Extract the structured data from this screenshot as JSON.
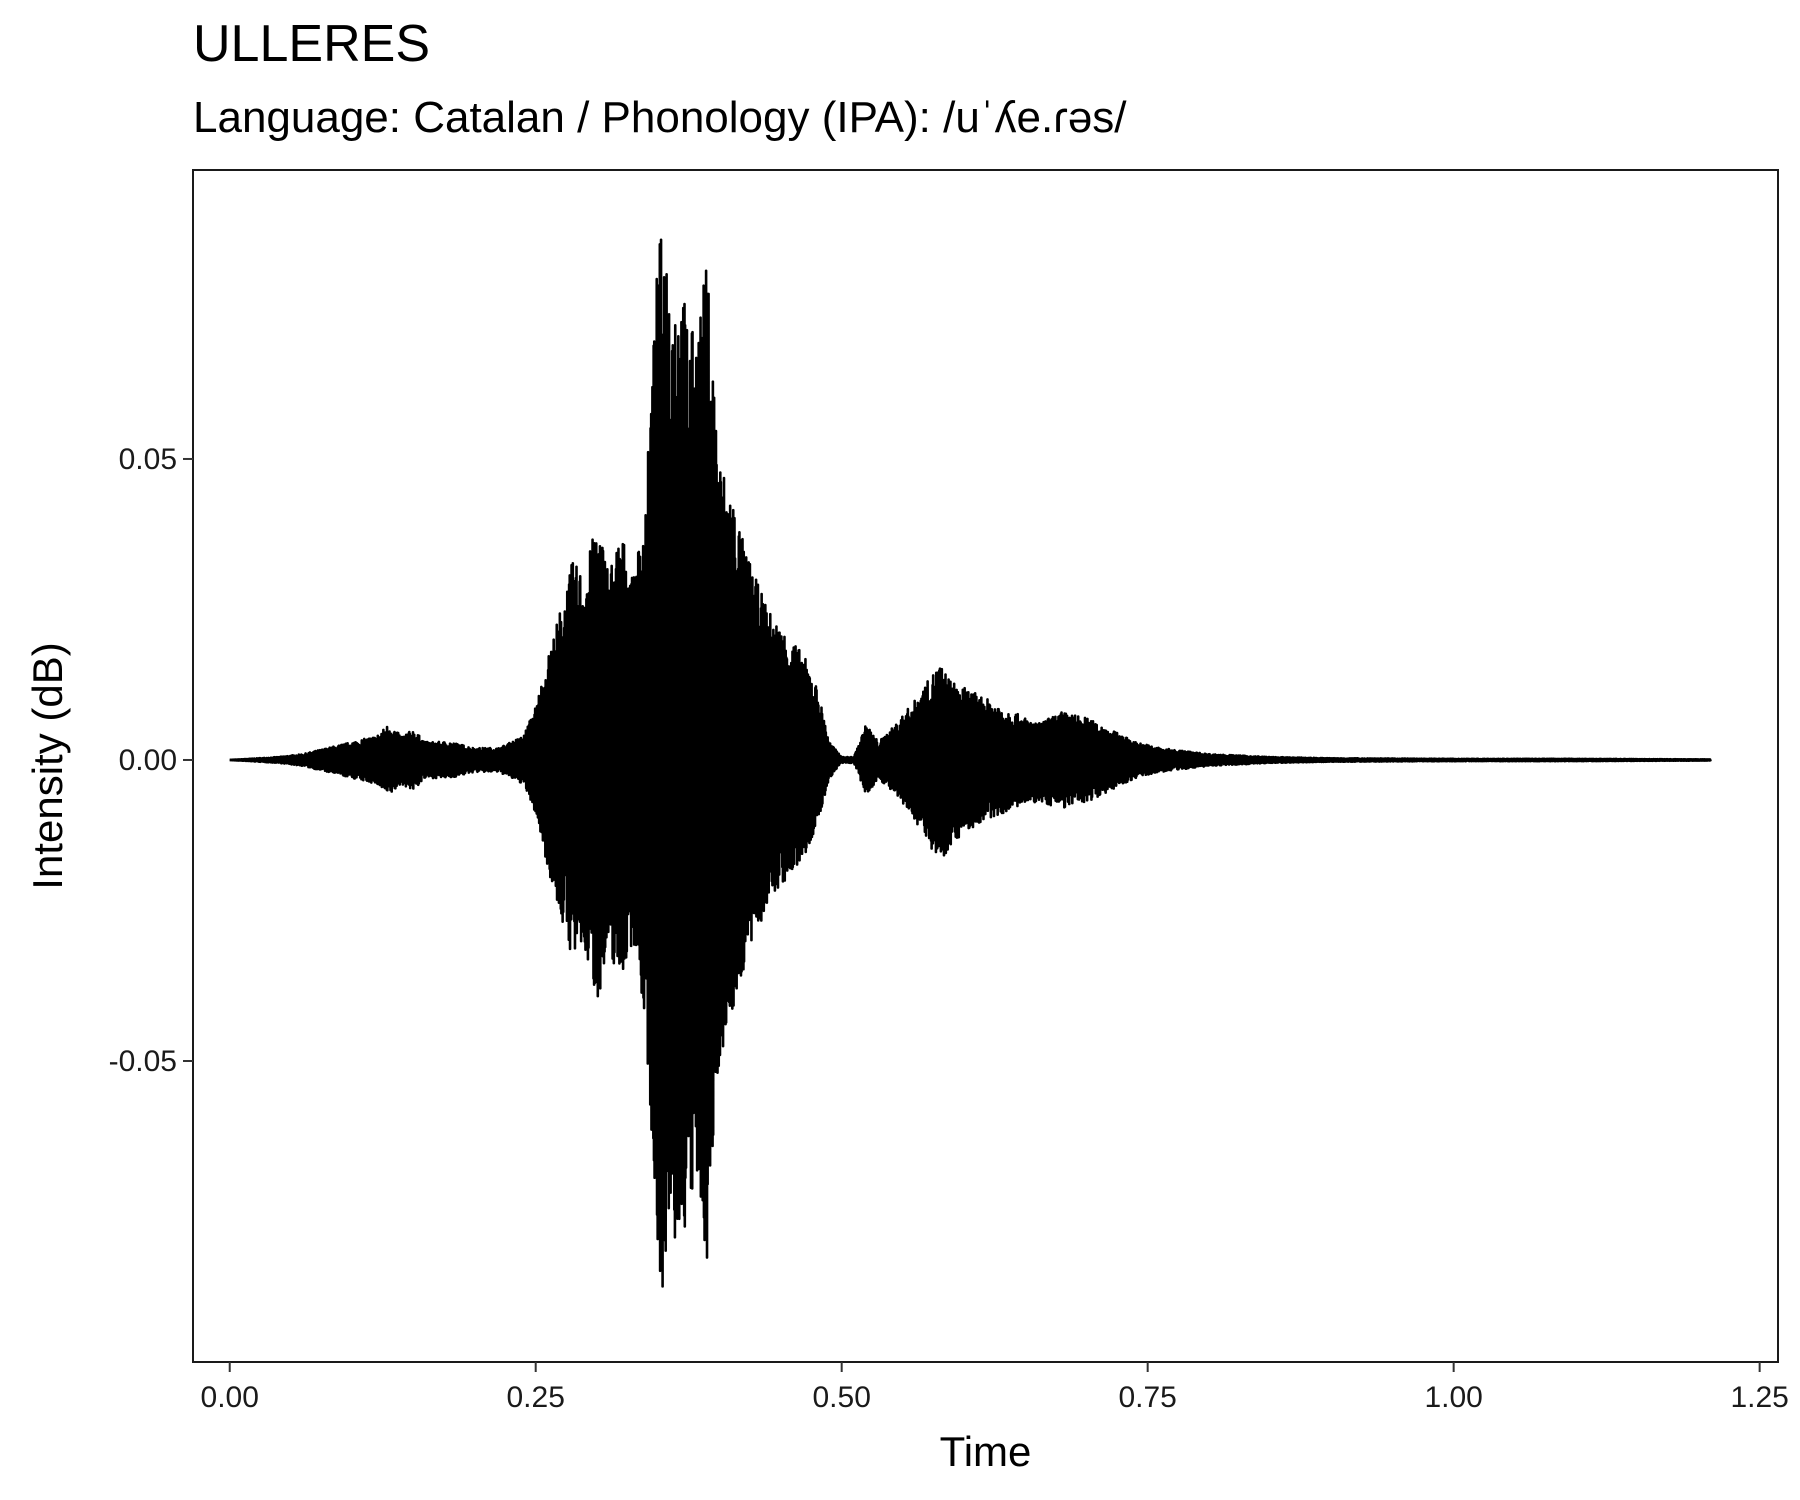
{
  "chart_data": {
    "type": "line",
    "title": "ULLERES",
    "subtitle": "Language: Catalan / Phonology (IPA): /uˈʎe.ɾəs/",
    "xlabel": "Time",
    "ylabel": "Intensity (dB)",
    "xlim": [
      -0.03,
      1.265
    ],
    "ylim": [
      -0.1,
      0.098
    ],
    "x_ticks": [
      0.0,
      0.25,
      0.5,
      0.75,
      1.0,
      1.25
    ],
    "x_tick_labels": [
      "0.00",
      "0.25",
      "0.50",
      "0.75",
      "1.00",
      "1.25"
    ],
    "y_ticks": [
      -0.05,
      0.0,
      0.05
    ],
    "y_tick_labels": [
      "-0.05",
      "0.00",
      "0.05"
    ],
    "grid": false,
    "legend": "none",
    "series_color": "#000000",
    "duration": 1.21,
    "envelope": {
      "x": [
        0.0,
        0.04,
        0.06,
        0.08,
        0.1,
        0.12,
        0.13,
        0.14,
        0.15,
        0.16,
        0.18,
        0.2,
        0.22,
        0.24,
        0.25,
        0.26,
        0.27,
        0.28,
        0.29,
        0.3,
        0.31,
        0.32,
        0.33,
        0.34,
        0.35,
        0.355,
        0.36,
        0.37,
        0.38,
        0.39,
        0.4,
        0.41,
        0.42,
        0.43,
        0.44,
        0.45,
        0.46,
        0.47,
        0.48,
        0.49,
        0.5,
        0.51,
        0.52,
        0.53,
        0.54,
        0.56,
        0.58,
        0.59,
        0.6,
        0.62,
        0.64,
        0.66,
        0.68,
        0.7,
        0.72,
        0.74,
        0.76,
        0.78,
        0.8,
        0.85,
        0.9,
        1.0,
        1.1,
        1.21
      ],
      "upper": [
        0.0,
        0.0005,
        0.001,
        0.002,
        0.003,
        0.004,
        0.006,
        0.004,
        0.005,
        0.003,
        0.003,
        0.002,
        0.002,
        0.004,
        0.009,
        0.017,
        0.025,
        0.033,
        0.031,
        0.04,
        0.032,
        0.038,
        0.03,
        0.044,
        0.085,
        0.09,
        0.08,
        0.078,
        0.07,
        0.083,
        0.05,
        0.045,
        0.036,
        0.03,
        0.025,
        0.022,
        0.02,
        0.017,
        0.012,
        0.003,
        0.0005,
        0.0005,
        0.006,
        0.003,
        0.005,
        0.01,
        0.016,
        0.013,
        0.012,
        0.01,
        0.008,
        0.006,
        0.008,
        0.007,
        0.005,
        0.003,
        0.002,
        0.0015,
        0.001,
        0.0005,
        0.0003,
        0.0002,
        0.0002,
        0.0001
      ],
      "lower": [
        0.0,
        -0.0005,
        -0.001,
        -0.002,
        -0.003,
        -0.004,
        -0.006,
        -0.004,
        -0.005,
        -0.003,
        -0.003,
        -0.002,
        -0.002,
        -0.004,
        -0.009,
        -0.018,
        -0.026,
        -0.033,
        -0.032,
        -0.04,
        -0.033,
        -0.036,
        -0.03,
        -0.045,
        -0.083,
        -0.09,
        -0.082,
        -0.08,
        -0.072,
        -0.083,
        -0.05,
        -0.043,
        -0.035,
        -0.029,
        -0.024,
        -0.021,
        -0.019,
        -0.016,
        -0.011,
        -0.003,
        -0.0005,
        -0.0005,
        -0.006,
        -0.003,
        -0.005,
        -0.01,
        -0.017,
        -0.014,
        -0.012,
        -0.01,
        -0.008,
        -0.007,
        -0.008,
        -0.007,
        -0.005,
        -0.003,
        -0.002,
        -0.0015,
        -0.001,
        -0.0005,
        -0.0003,
        -0.0002,
        -0.0002,
        -0.0001
      ]
    }
  }
}
